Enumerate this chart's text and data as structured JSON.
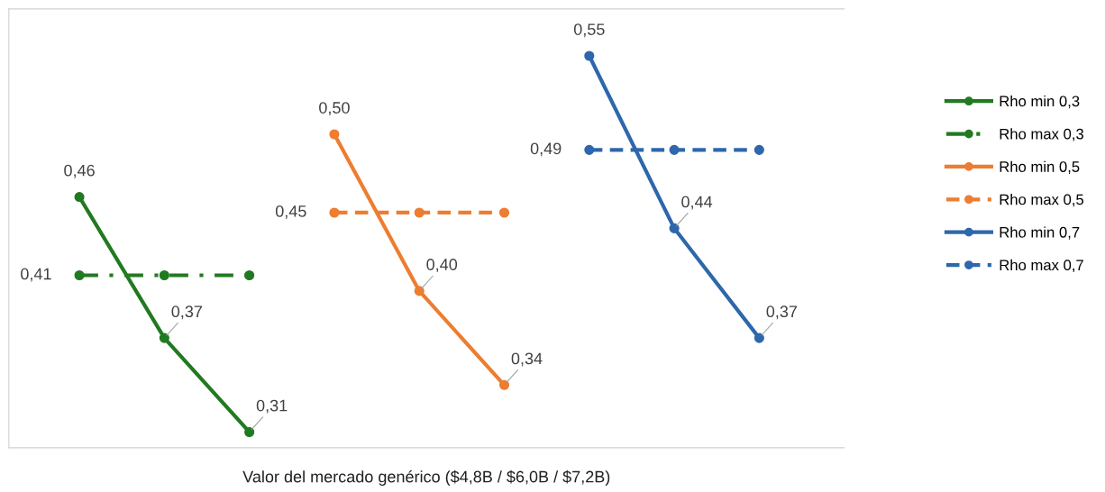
{
  "chart_data": {
    "type": "line",
    "xlabel": "Valor del mercado genérico ($4,8B / $6,0B / $7,2B)",
    "categories": [
      null,
      null,
      null,
      null,
      null,
      null,
      null,
      null,
      null
    ],
    "ylim": [
      0.3,
      0.58
    ],
    "tick_labels": false,
    "grid": false,
    "legend": "right",
    "marker": "circle",
    "series": [
      {
        "name": "Rho min 0,3",
        "color": "#217a21",
        "line_style": "solid",
        "values": [
          0.46,
          0.37,
          0.31,
          null,
          null,
          null,
          null,
          null,
          null
        ],
        "value_labels": [
          "0,46",
          "0,37",
          "0,31",
          null,
          null,
          null,
          null,
          null,
          null
        ]
      },
      {
        "name": "Rho max 0,3",
        "color": "#217a21",
        "line_style": "dashdot",
        "values": [
          0.41,
          0.41,
          0.41,
          null,
          null,
          null,
          null,
          null,
          null
        ],
        "value_labels": [
          "0,41",
          null,
          null,
          null,
          null,
          null,
          null,
          null,
          null
        ]
      },
      {
        "name": "Rho min 0,5",
        "color": "#ed7d31",
        "line_style": "solid",
        "values": [
          null,
          null,
          null,
          0.5,
          0.4,
          0.34,
          null,
          null,
          null
        ],
        "value_labels": [
          null,
          null,
          null,
          "0,50",
          "0,40",
          "0,34",
          null,
          null,
          null
        ]
      },
      {
        "name": "Rho max 0,5",
        "color": "#ed7d31",
        "line_style": "dashed",
        "values": [
          null,
          null,
          null,
          0.45,
          0.45,
          0.45,
          null,
          null,
          null
        ],
        "value_labels": [
          null,
          null,
          null,
          "0,45",
          null,
          null,
          null,
          null,
          null
        ]
      },
      {
        "name": "Rho min 0,7",
        "color": "#2e67ab",
        "line_style": "solid",
        "values": [
          null,
          null,
          null,
          null,
          null,
          null,
          0.55,
          0.44,
          0.37
        ],
        "value_labels": [
          null,
          null,
          null,
          null,
          null,
          null,
          "0,55",
          "0,44",
          "0,37"
        ]
      },
      {
        "name": "Rho max 0,7",
        "color": "#2e67ab",
        "line_style": "dashed",
        "values": [
          null,
          null,
          null,
          null,
          null,
          null,
          0.49,
          0.49,
          0.49
        ],
        "value_labels": [
          null,
          null,
          null,
          null,
          null,
          null,
          "0,49",
          null,
          null
        ]
      }
    ]
  }
}
